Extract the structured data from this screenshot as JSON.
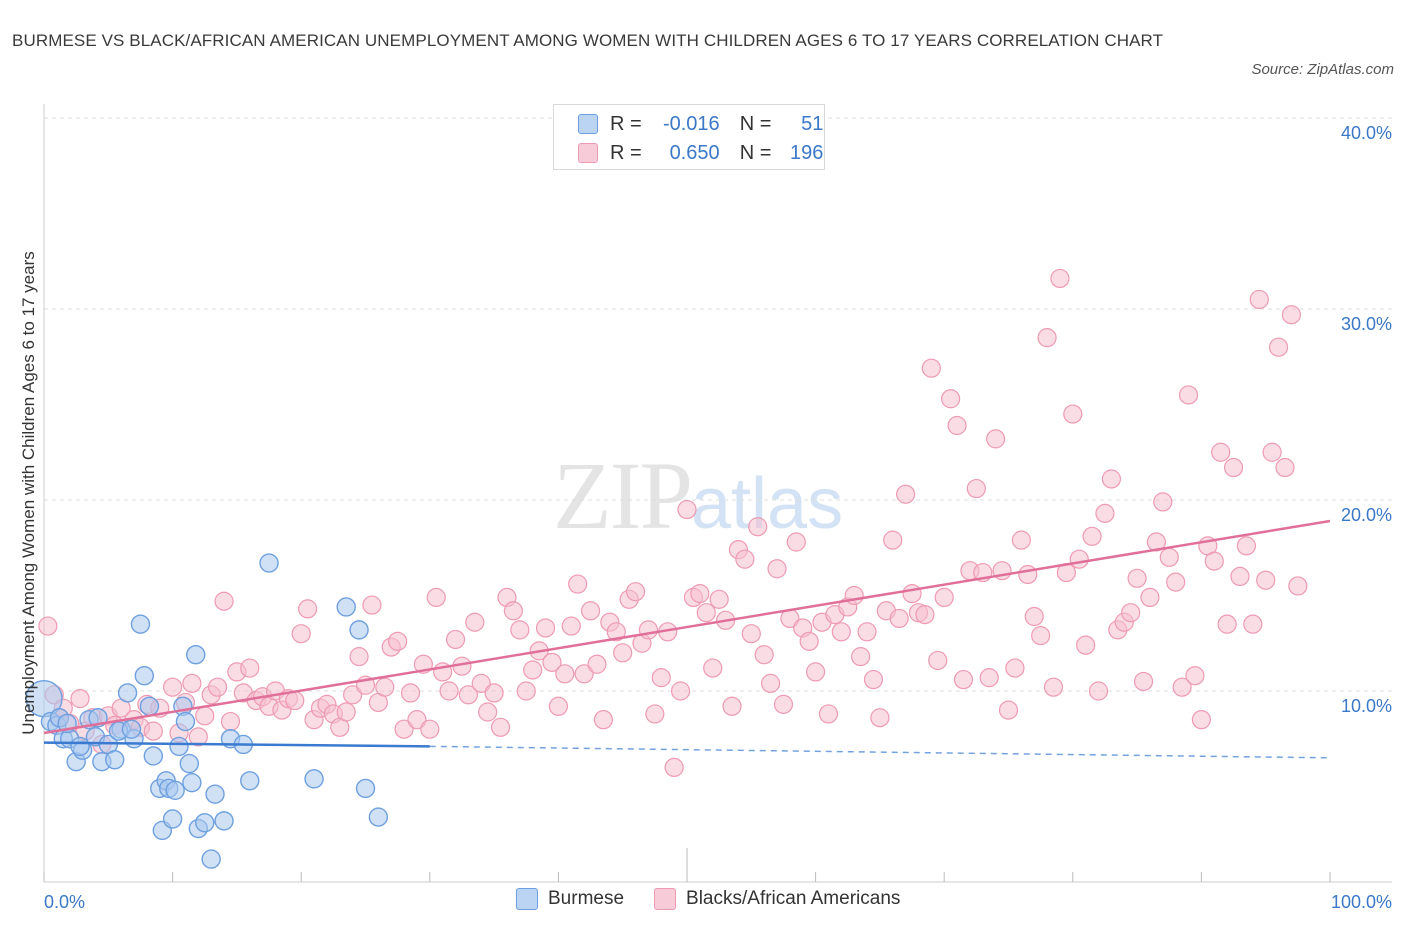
{
  "title": "BURMESE VS BLACK/AFRICAN AMERICAN UNEMPLOYMENT AMONG WOMEN WITH CHILDREN AGES 6 TO 17 YEARS CORRELATION CHART",
  "source": "Source: ZipAtlas.com",
  "watermark": {
    "zip": "ZIP",
    "atlas": "atlas"
  },
  "legend": {
    "r_label": "R =",
    "n_label": "N =",
    "burmese": {
      "r": "-0.016",
      "n": "51"
    },
    "black": {
      "r": "0.650",
      "n": "196"
    }
  },
  "colors": {
    "burmese_fill": "#a9c8ef",
    "burmese_stroke": "#6ea0e0",
    "burmese_line": "#3a7ad0",
    "black_fill": "#f6c0cf",
    "black_stroke": "#ee9ab2",
    "black_line": "#e0709a",
    "accent_text": "#3b78c8"
  },
  "chart_data": {
    "type": "scatter",
    "title": "BURMESE VS BLACK/AFRICAN AMERICAN UNEMPLOYMENT AMONG WOMEN WITH CHILDREN AGES 6 TO 17 YEARS CORRELATION CHART",
    "xlabel": "",
    "ylabel": "Unemployment Among Women with Children Ages 6 to 17 years",
    "xlim": [
      0,
      100
    ],
    "ylim": [
      0,
      40
    ],
    "x_tick_labels": [
      "0.0%",
      "100.0%"
    ],
    "y_ticks": [
      10,
      20,
      30,
      40
    ],
    "y_tick_labels": [
      "10.0%",
      "20.0%",
      "30.0%",
      "40.0%"
    ],
    "grid": true,
    "legend_placement": "top-center",
    "series": [
      {
        "name": "Burmese",
        "trend": {
          "x": [
            0,
            30
          ],
          "y": [
            7.3,
            7.1
          ],
          "dashed_to": [
            100,
            6.5
          ]
        },
        "points": [
          [
            0,
            9.6
          ],
          [
            0.5,
            8.4
          ],
          [
            1,
            8.2
          ],
          [
            1.2,
            8.6
          ],
          [
            1.5,
            7.5
          ],
          [
            2,
            7.5
          ],
          [
            2.5,
            6.3
          ],
          [
            3,
            6.9
          ],
          [
            3.5,
            8.5
          ],
          [
            4,
            7.6
          ],
          [
            4.5,
            6.3
          ],
          [
            5,
            7.2
          ],
          [
            5.5,
            6.4
          ],
          [
            6,
            8.0
          ],
          [
            6.5,
            9.9
          ],
          [
            7,
            7.5
          ],
          [
            7.5,
            13.5
          ],
          [
            7.8,
            10.8
          ],
          [
            8.5,
            6.6
          ],
          [
            9,
            4.9
          ],
          [
            9.2,
            2.7
          ],
          [
            9.5,
            5.3
          ],
          [
            9.7,
            4.9
          ],
          [
            10,
            3.3
          ],
          [
            10.2,
            4.8
          ],
          [
            10.5,
            7.1
          ],
          [
            10.8,
            9.2
          ],
          [
            11,
            8.4
          ],
          [
            11.3,
            6.2
          ],
          [
            11.5,
            5.2
          ],
          [
            11.8,
            11.9
          ],
          [
            12,
            2.8
          ],
          [
            12.5,
            3.1
          ],
          [
            13,
            1.2
          ],
          [
            13.3,
            4.6
          ],
          [
            14,
            3.2
          ],
          [
            14.5,
            7.5
          ],
          [
            15.5,
            7.2
          ],
          [
            16,
            5.3
          ],
          [
            17.5,
            16.7
          ],
          [
            21,
            5.4
          ],
          [
            23.5,
            14.4
          ],
          [
            24.5,
            13.2
          ],
          [
            25,
            4.9
          ],
          [
            26,
            3.4
          ],
          [
            1.8,
            8.3
          ],
          [
            2.8,
            7.1
          ],
          [
            4.2,
            8.6
          ],
          [
            5.8,
            7.9
          ],
          [
            6.8,
            8.0
          ],
          [
            8.2,
            9.2
          ]
        ]
      },
      {
        "name": "Blacks/African Americans",
        "trend": {
          "x": [
            0,
            100
          ],
          "y": [
            7.8,
            18.9
          ]
        },
        "points": [
          [
            0.3,
            13.4
          ],
          [
            0.8,
            9.8
          ],
          [
            1.2,
            8.6
          ],
          [
            1.5,
            9.1
          ],
          [
            2,
            8.3
          ],
          [
            2.8,
            9.6
          ],
          [
            3.2,
            7.9
          ],
          [
            3.8,
            8.6
          ],
          [
            4.5,
            7.2
          ],
          [
            5,
            8.7
          ],
          [
            5.5,
            8.2
          ],
          [
            6,
            9.1
          ],
          [
            7,
            8.5
          ],
          [
            7.5,
            8.1
          ],
          [
            8,
            9.3
          ],
          [
            8.5,
            7.9
          ],
          [
            9,
            9.1
          ],
          [
            10,
            10.2
          ],
          [
            10.5,
            7.8
          ],
          [
            11,
            9.4
          ],
          [
            11.5,
            10.4
          ],
          [
            12,
            7.6
          ],
          [
            12.5,
            8.7
          ],
          [
            13,
            9.8
          ],
          [
            13.5,
            10.2
          ],
          [
            14,
            14.7
          ],
          [
            14.5,
            8.4
          ],
          [
            15,
            11.0
          ],
          [
            15.5,
            9.9
          ],
          [
            16,
            11.2
          ],
          [
            16.5,
            9.5
          ],
          [
            17,
            9.7
          ],
          [
            17.5,
            9.2
          ],
          [
            18,
            10.0
          ],
          [
            18.5,
            9.0
          ],
          [
            19,
            9.6
          ],
          [
            19.5,
            9.5
          ],
          [
            20,
            13.0
          ],
          [
            20.5,
            14.3
          ],
          [
            21,
            8.5
          ],
          [
            21.5,
            9.1
          ],
          [
            22,
            9.3
          ],
          [
            22.5,
            8.8
          ],
          [
            23,
            8.1
          ],
          [
            23.5,
            8.9
          ],
          [
            24,
            9.8
          ],
          [
            24.5,
            11.8
          ],
          [
            25,
            10.3
          ],
          [
            25.5,
            14.5
          ],
          [
            26,
            9.4
          ],
          [
            26.5,
            10.2
          ],
          [
            27,
            12.3
          ],
          [
            27.5,
            12.6
          ],
          [
            28,
            8.0
          ],
          [
            28.5,
            9.9
          ],
          [
            29,
            8.5
          ],
          [
            29.5,
            11.4
          ],
          [
            30,
            8.0
          ],
          [
            30.5,
            14.9
          ],
          [
            31,
            11.0
          ],
          [
            31.5,
            10.0
          ],
          [
            32,
            12.7
          ],
          [
            32.5,
            11.3
          ],
          [
            33,
            9.8
          ],
          [
            33.5,
            13.6
          ],
          [
            34,
            10.4
          ],
          [
            34.5,
            8.9
          ],
          [
            35,
            9.9
          ],
          [
            35.5,
            8.1
          ],
          [
            36,
            14.9
          ],
          [
            36.5,
            14.2
          ],
          [
            37,
            13.2
          ],
          [
            37.5,
            10.0
          ],
          [
            38,
            11.1
          ],
          [
            38.5,
            12.1
          ],
          [
            39,
            13.3
          ],
          [
            39.5,
            11.5
          ],
          [
            40,
            9.2
          ],
          [
            40.5,
            10.9
          ],
          [
            41,
            13.4
          ],
          [
            41.5,
            15.6
          ],
          [
            42,
            10.9
          ],
          [
            42.5,
            14.2
          ],
          [
            43,
            11.4
          ],
          [
            43.5,
            8.5
          ],
          [
            44,
            13.6
          ],
          [
            44.5,
            13.1
          ],
          [
            45,
            12.0
          ],
          [
            45.5,
            14.8
          ],
          [
            46,
            15.2
          ],
          [
            46.5,
            12.5
          ],
          [
            47,
            13.2
          ],
          [
            47.5,
            8.8
          ],
          [
            48,
            10.7
          ],
          [
            48.5,
            13.1
          ],
          [
            49,
            6.0
          ],
          [
            49.5,
            10.0
          ],
          [
            50,
            19.5
          ],
          [
            50.5,
            14.9
          ],
          [
            51,
            15.1
          ],
          [
            51.5,
            14.1
          ],
          [
            52,
            11.2
          ],
          [
            52.5,
            14.8
          ],
          [
            53,
            13.7
          ],
          [
            53.5,
            9.2
          ],
          [
            54,
            17.4
          ],
          [
            54.5,
            16.9
          ],
          [
            55,
            13.0
          ],
          [
            55.5,
            18.6
          ],
          [
            56,
            11.9
          ],
          [
            56.5,
            10.4
          ],
          [
            57,
            16.4
          ],
          [
            57.5,
            9.3
          ],
          [
            58,
            13.8
          ],
          [
            58.5,
            17.8
          ],
          [
            59,
            13.3
          ],
          [
            59.5,
            12.6
          ],
          [
            60,
            11.0
          ],
          [
            60.5,
            13.6
          ],
          [
            61,
            8.8
          ],
          [
            61.5,
            14.0
          ],
          [
            62,
            13.1
          ],
          [
            62.5,
            14.4
          ],
          [
            63,
            15.0
          ],
          [
            63.5,
            11.8
          ],
          [
            64,
            13.1
          ],
          [
            64.5,
            10.6
          ],
          [
            65,
            8.6
          ],
          [
            65.5,
            14.2
          ],
          [
            66,
            17.9
          ],
          [
            66.5,
            13.8
          ],
          [
            67,
            20.3
          ],
          [
            67.5,
            15.1
          ],
          [
            68,
            14.1
          ],
          [
            68.5,
            14.0
          ],
          [
            69,
            26.9
          ],
          [
            69.5,
            11.6
          ],
          [
            70,
            14.9
          ],
          [
            70.5,
            25.3
          ],
          [
            71,
            23.9
          ],
          [
            71.5,
            10.6
          ],
          [
            72,
            16.3
          ],
          [
            72.5,
            20.6
          ],
          [
            73,
            16.2
          ],
          [
            73.5,
            10.7
          ],
          [
            74,
            23.2
          ],
          [
            74.5,
            16.3
          ],
          [
            75,
            9.0
          ],
          [
            75.5,
            11.2
          ],
          [
            76,
            17.9
          ],
          [
            76.5,
            16.1
          ],
          [
            77,
            13.9
          ],
          [
            77.5,
            12.9
          ],
          [
            78,
            28.5
          ],
          [
            78.5,
            10.2
          ],
          [
            79,
            31.6
          ],
          [
            79.5,
            16.2
          ],
          [
            80,
            24.5
          ],
          [
            80.5,
            16.9
          ],
          [
            81,
            12.4
          ],
          [
            81.5,
            18.1
          ],
          [
            82,
            10.0
          ],
          [
            82.5,
            19.3
          ],
          [
            83,
            21.1
          ],
          [
            83.5,
            13.2
          ],
          [
            84,
            13.6
          ],
          [
            84.5,
            14.1
          ],
          [
            85,
            15.9
          ],
          [
            85.5,
            10.5
          ],
          [
            86,
            14.9
          ],
          [
            86.5,
            17.8
          ],
          [
            87,
            19.9
          ],
          [
            87.5,
            17.0
          ],
          [
            88,
            15.7
          ],
          [
            88.5,
            10.2
          ],
          [
            89,
            25.5
          ],
          [
            89.5,
            10.8
          ],
          [
            90,
            8.5
          ],
          [
            90.5,
            17.6
          ],
          [
            91,
            16.8
          ],
          [
            91.5,
            22.5
          ],
          [
            92,
            13.5
          ],
          [
            92.5,
            21.7
          ],
          [
            93,
            16.0
          ],
          [
            93.5,
            17.6
          ],
          [
            94,
            13.5
          ],
          [
            94.5,
            30.5
          ],
          [
            95,
            15.8
          ],
          [
            95.5,
            22.5
          ],
          [
            96,
            28.0
          ],
          [
            96.5,
            21.7
          ],
          [
            97,
            29.7
          ],
          [
            97.5,
            15.5
          ]
        ]
      }
    ]
  }
}
